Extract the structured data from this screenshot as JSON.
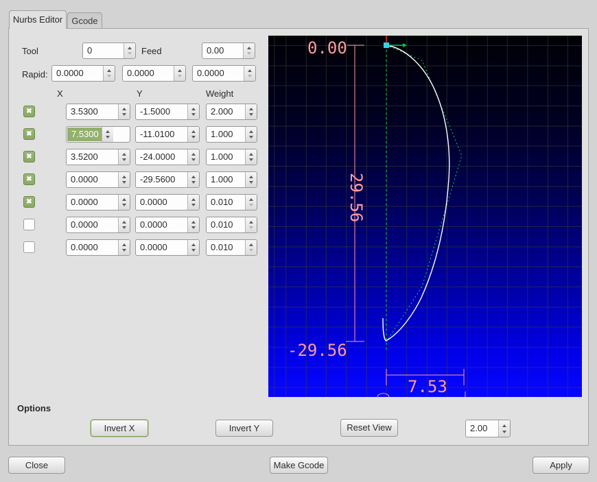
{
  "tabs": [
    {
      "label": "Nurbs Editor",
      "active": true
    },
    {
      "label": "Gcode",
      "active": false
    }
  ],
  "controls": {
    "tool_label": "Tool",
    "tool_value": "0",
    "feed_label": "Feed",
    "feed_value": "0.00",
    "rapid_label": "Rapid:",
    "rapid_values": [
      "0.0000",
      "0.0000",
      "0.0000"
    ]
  },
  "table": {
    "headers": {
      "x": "X",
      "y": "Y",
      "weight": "Weight"
    },
    "rows": [
      {
        "checked": true,
        "x": "3.5300",
        "y": "-1.5000",
        "weight": "2.000",
        "x_selected": false
      },
      {
        "checked": true,
        "x": "7.5300",
        "y": "-11.0100",
        "weight": "1.000",
        "x_selected": true
      },
      {
        "checked": true,
        "x": "3.5200",
        "y": "-24.0000",
        "weight": "1.000",
        "x_selected": false
      },
      {
        "checked": true,
        "x": "0.0000",
        "y": "-29.5600",
        "weight": "1.000",
        "x_selected": false
      },
      {
        "checked": true,
        "x": "0.0000",
        "y": "0.0000",
        "weight": "0.010",
        "x_selected": false
      },
      {
        "checked": false,
        "x": "0.0000",
        "y": "0.0000",
        "weight": "0.010",
        "x_selected": false
      },
      {
        "checked": false,
        "x": "0.0000",
        "y": "0.0000",
        "weight": "0.010",
        "x_selected": false
      }
    ]
  },
  "preview": {
    "dim_top": "0.00",
    "dim_height": "29.56",
    "dim_bottom": "-29.56",
    "dim_width": "7.53"
  },
  "options": {
    "title": "Options",
    "invert_x": "Invert X",
    "invert_y": "Invert Y",
    "reset_view": "Reset View",
    "grid_size": "2.00"
  },
  "actions": {
    "close": "Close",
    "make_gcode": "Make Gcode",
    "apply": "Apply"
  },
  "colors": {
    "curve": "#ffffff",
    "polygon": "#00dd44",
    "dimension": "#ff9d9d",
    "selected_point": "#35d2e8",
    "axis_x": "#00cc44",
    "axis_y": "#ff2a2a",
    "selection": "#93b06e",
    "checkbox": "#9cb877",
    "canvas_bottom": "#0707ff"
  }
}
